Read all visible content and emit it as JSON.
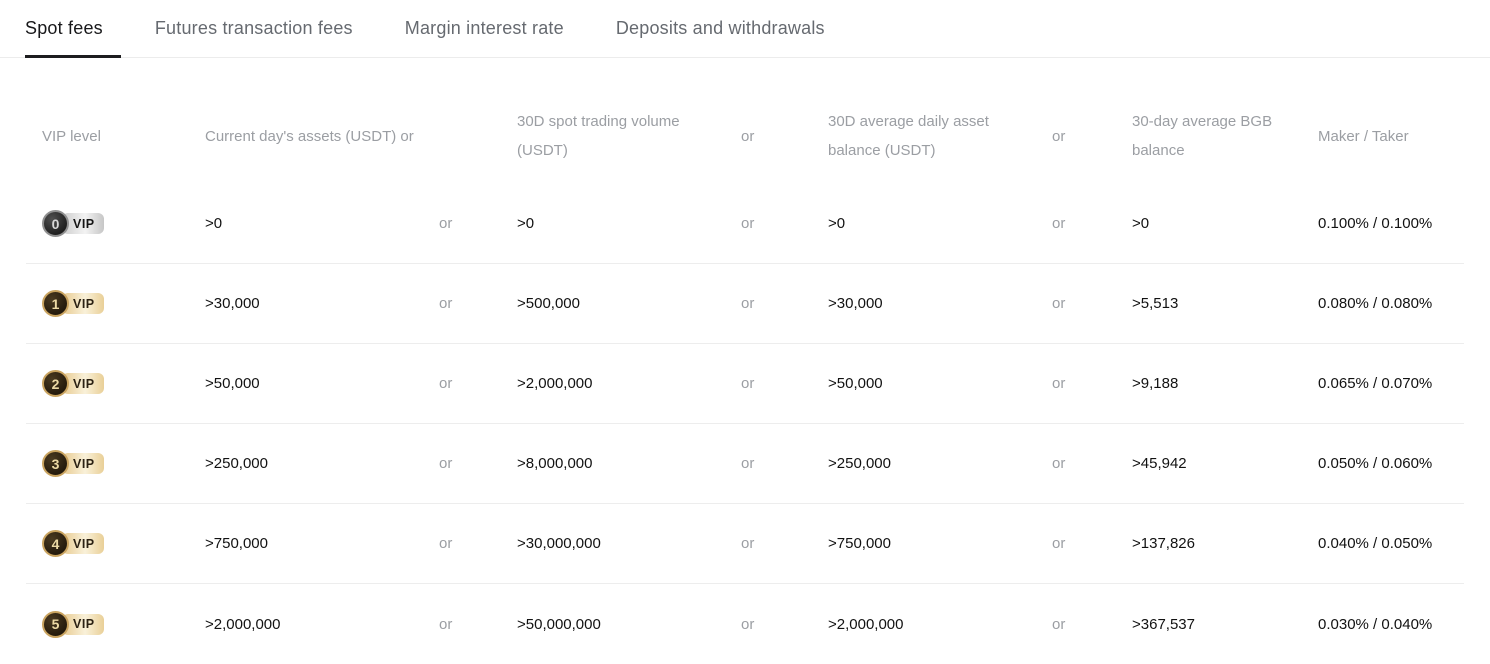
{
  "tabs": [
    {
      "label": "Spot fees",
      "active": true
    },
    {
      "label": "Futures transaction fees",
      "active": false
    },
    {
      "label": "Margin interest rate",
      "active": false
    },
    {
      "label": "Deposits and withdrawals",
      "active": false
    }
  ],
  "table": {
    "or_label": "or",
    "vip_label": "VIP",
    "headers": [
      "VIP level",
      "Current day's assets (USDT) or",
      "",
      "30D spot trading volume (USDT)",
      "or",
      "30D average daily asset balance (USDT)",
      "or",
      "30-day average BGB balance",
      "Maker / Taker"
    ],
    "rows": [
      {
        "level": "0",
        "tier": "gray",
        "assets": ">0",
        "spot_volume": ">0",
        "asset_balance": ">0",
        "bgb_balance": ">0",
        "maker_taker": "0.100% / 0.100%"
      },
      {
        "level": "1",
        "tier": "gold",
        "assets": ">30,000",
        "spot_volume": ">500,000",
        "asset_balance": ">30,000",
        "bgb_balance": ">5,513",
        "maker_taker": "0.080% / 0.080%"
      },
      {
        "level": "2",
        "tier": "gold",
        "assets": ">50,000",
        "spot_volume": ">2,000,000",
        "asset_balance": ">50,000",
        "bgb_balance": ">9,188",
        "maker_taker": "0.065% / 0.070%"
      },
      {
        "level": "3",
        "tier": "gold",
        "assets": ">250,000",
        "spot_volume": ">8,000,000",
        "asset_balance": ">250,000",
        "bgb_balance": ">45,942",
        "maker_taker": "0.050% / 0.060%"
      },
      {
        "level": "4",
        "tier": "gold",
        "assets": ">750,000",
        "spot_volume": ">30,000,000",
        "asset_balance": ">750,000",
        "bgb_balance": ">137,826",
        "maker_taker": "0.040% / 0.050%"
      },
      {
        "level": "5",
        "tier": "gold",
        "assets": ">2,000,000",
        "spot_volume": ">50,000,000",
        "asset_balance": ">2,000,000",
        "bgb_balance": ">367,537",
        "maker_taker": "0.030% / 0.040%"
      }
    ]
  },
  "colors": {
    "active_tab": "#18181a",
    "inactive_tab": "#666a70",
    "header_text": "#9b9ea3",
    "body_text": "#121212",
    "divider": "#ededed",
    "gold_badge": "#e9cf97",
    "gray_badge": "#cdcdcd"
  }
}
